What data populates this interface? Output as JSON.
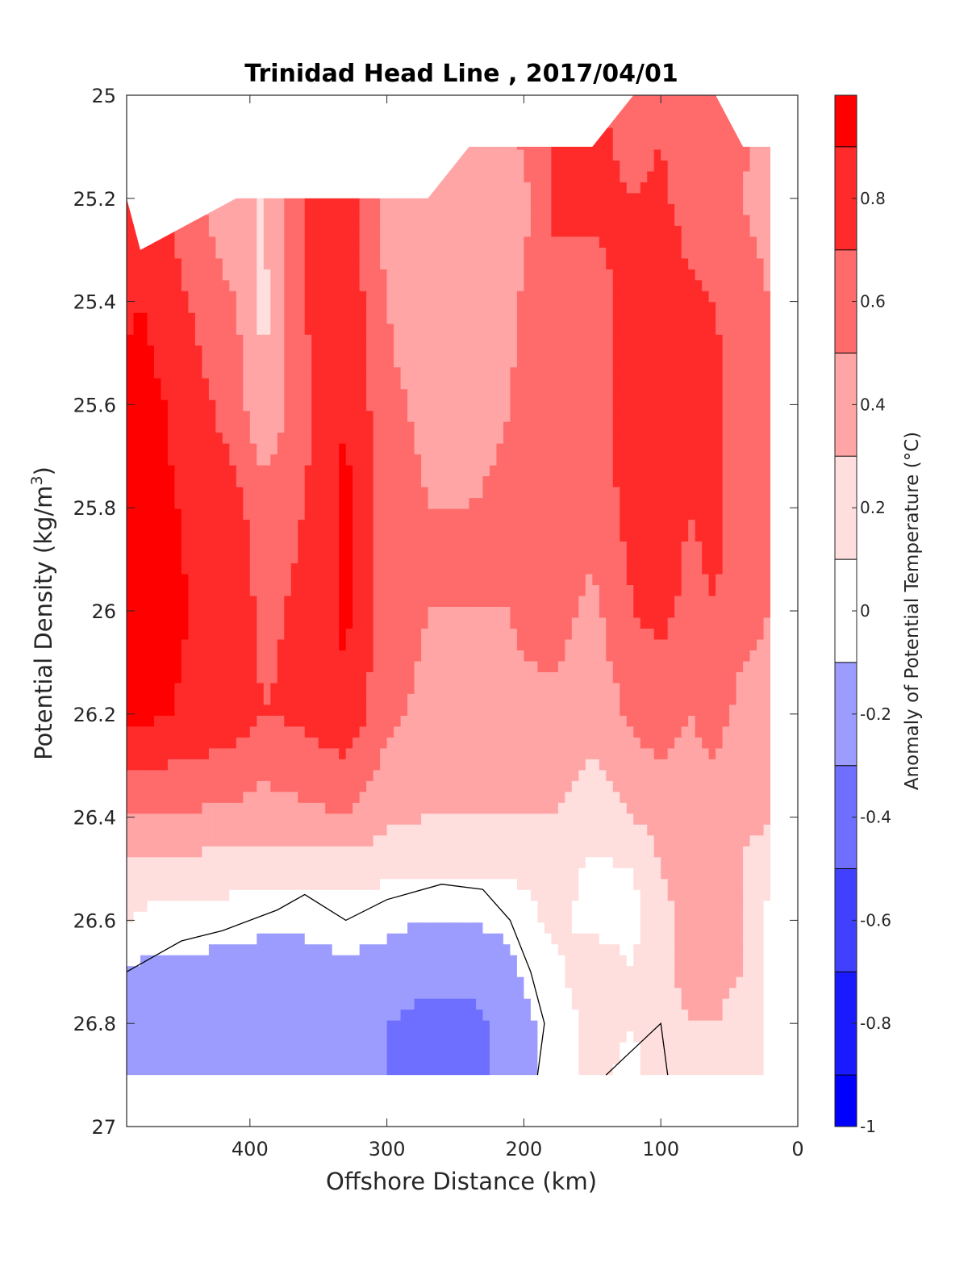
{
  "chart_data": {
    "type": "heatmap",
    "title": "Trinidad Head Line , 2017/04/01",
    "xlabel": "Offshore Distance (km)",
    "ylabel_main": "Potential Density (kg/m",
    "ylabel_sup": "3",
    "ylabel_close": ")",
    "xlim": [
      490,
      0
    ],
    "ylim": [
      25,
      27
    ],
    "x_reversed": true,
    "y_reversed": true,
    "x_ticks": [
      400,
      300,
      200,
      100,
      0
    ],
    "y_ticks": [
      "25",
      "25.2",
      "25.4",
      "25.6",
      "25.8",
      "26",
      "26.2",
      "26.4",
      "26.6",
      "26.8",
      "27"
    ],
    "colorbar": {
      "label": "Anomaly of Potential Temperature (°C)",
      "range": [
        -1,
        1
      ],
      "ticks": [
        "-1",
        "-0.8",
        "-0.6",
        "-0.4",
        "-0.2",
        "0",
        "0.2",
        "0.4",
        "0.6",
        "0.8"
      ],
      "levels": [
        {
          "from": -1.0,
          "to": -0.9,
          "color": "#0000ff"
        },
        {
          "from": -0.9,
          "to": -0.7,
          "color": "#1a1aff"
        },
        {
          "from": -0.7,
          "to": -0.5,
          "color": "#4040ff"
        },
        {
          "from": -0.5,
          "to": -0.3,
          "color": "#6e6eff"
        },
        {
          "from": -0.3,
          "to": -0.1,
          "color": "#9c9cff"
        },
        {
          "from": -0.1,
          "to": 0.1,
          "color": "#ffffff"
        },
        {
          "from": 0.1,
          "to": 0.3,
          "color": "#ffdede"
        },
        {
          "from": 0.3,
          "to": 0.5,
          "color": "#ffa5a5"
        },
        {
          "from": 0.5,
          "to": 0.7,
          "color": "#ff6b6b"
        },
        {
          "from": 0.7,
          "to": 0.9,
          "color": "#ff2b2b"
        },
        {
          "from": 0.9,
          "to": 1.0,
          "color": "#ff0000"
        }
      ]
    },
    "station_x": [
      490,
      480,
      410,
      390,
      360,
      330,
      300,
      270,
      240,
      210,
      180,
      150,
      120,
      100,
      80,
      60,
      40,
      20
    ],
    "data_top_y": [
      25.2,
      25.3,
      25.2,
      25.2,
      25.2,
      25.2,
      25.2,
      25.2,
      25.1,
      25.1,
      25.1,
      25.1,
      25.0,
      25.0,
      25.0,
      25.0,
      25.1,
      25.1
    ],
    "data_bottom_y": 26.9,
    "contour_zero": [
      [
        490,
        26.7
      ],
      [
        470,
        26.67
      ],
      [
        450,
        26.64
      ],
      [
        420,
        26.62
      ],
      [
        380,
        26.58
      ],
      [
        360,
        26.55
      ],
      [
        330,
        26.6
      ],
      [
        300,
        26.56
      ],
      [
        260,
        26.53
      ],
      [
        230,
        26.54
      ],
      [
        210,
        26.6
      ],
      [
        195,
        26.7
      ],
      [
        185,
        26.8
      ],
      [
        190,
        26.9
      ]
    ],
    "contour_right": [
      [
        140,
        26.9
      ],
      [
        120,
        26.85
      ],
      [
        100,
        26.8
      ],
      [
        95,
        26.9
      ]
    ],
    "anomaly_grid": {
      "y": [
        25.0,
        25.2,
        25.4,
        25.6,
        25.8,
        26.0,
        26.2,
        26.4,
        26.5,
        26.6,
        26.7,
        26.8,
        26.9
      ],
      "values": [
        [
          0.85,
          0.85,
          0.3,
          0.3,
          0.7,
          0.8,
          0.4,
          0.4,
          0.5,
          0.6,
          0.7,
          0.75,
          0.6,
          0.65,
          0.55,
          0.5,
          0.55,
          0.5
        ],
        [
          0.85,
          0.85,
          0.3,
          0.3,
          0.7,
          0.8,
          0.4,
          0.4,
          0.35,
          0.3,
          0.7,
          0.75,
          0.7,
          0.75,
          0.6,
          0.55,
          0.5,
          0.4
        ],
        [
          0.85,
          0.9,
          0.5,
          0.25,
          0.7,
          0.85,
          0.5,
          0.35,
          0.3,
          0.45,
          0.7,
          0.6,
          0.8,
          0.9,
          0.75,
          0.7,
          0.6,
          0.5
        ],
        [
          0.95,
          1.0,
          0.6,
          0.3,
          0.65,
          0.9,
          0.55,
          0.45,
          0.4,
          0.5,
          0.7,
          0.6,
          0.8,
          0.9,
          0.75,
          0.75,
          0.6,
          0.55
        ],
        [
          0.95,
          1.0,
          0.75,
          0.6,
          0.7,
          0.95,
          0.6,
          0.5,
          0.5,
          0.55,
          0.7,
          0.55,
          0.8,
          0.85,
          0.7,
          0.75,
          0.6,
          0.55
        ],
        [
          0.95,
          1.0,
          0.8,
          0.65,
          0.75,
          0.95,
          0.6,
          0.5,
          0.5,
          0.5,
          0.6,
          0.45,
          0.7,
          0.75,
          0.65,
          0.7,
          0.55,
          0.5
        ],
        [
          0.95,
          0.95,
          0.8,
          0.7,
          0.75,
          0.85,
          0.55,
          0.45,
          0.45,
          0.45,
          0.45,
          0.35,
          0.55,
          0.6,
          0.5,
          0.55,
          0.45,
          0.45
        ],
        [
          0.5,
          0.5,
          0.45,
          0.4,
          0.45,
          0.5,
          0.35,
          0.3,
          0.3,
          0.3,
          0.3,
          0.2,
          0.3,
          0.4,
          0.4,
          0.45,
          0.35,
          0.35
        ],
        [
          0.25,
          0.25,
          0.2,
          0.2,
          0.2,
          0.2,
          0.15,
          0.15,
          0.15,
          0.15,
          0.2,
          0.05,
          0.1,
          0.3,
          0.35,
          0.4,
          0.3,
          0.1
        ],
        [
          0.15,
          0.05,
          0.0,
          -0.05,
          -0.05,
          0.0,
          -0.05,
          -0.1,
          -0.1,
          -0.05,
          0.15,
          0.05,
          0.05,
          0.25,
          0.35,
          0.35,
          0.3,
          0.05
        ],
        [
          -0.1,
          -0.15,
          -0.2,
          -0.2,
          -0.2,
          -0.15,
          -0.2,
          -0.25,
          -0.25,
          -0.15,
          0.05,
          0.2,
          0.1,
          0.25,
          0.35,
          0.35,
          0.3,
          0.05
        ],
        [
          -0.2,
          -0.2,
          -0.25,
          -0.3,
          -0.25,
          -0.2,
          -0.3,
          -0.35,
          -0.35,
          -0.25,
          0.0,
          0.15,
          0.1,
          0.2,
          0.3,
          0.3,
          0.25,
          0.05
        ],
        [
          -0.2,
          -0.2,
          -0.25,
          -0.3,
          -0.25,
          -0.2,
          -0.3,
          -0.35,
          -0.35,
          -0.25,
          0.0,
          0.15,
          0.05,
          0.2,
          0.25,
          0.3,
          0.2,
          0.05
        ]
      ]
    }
  }
}
